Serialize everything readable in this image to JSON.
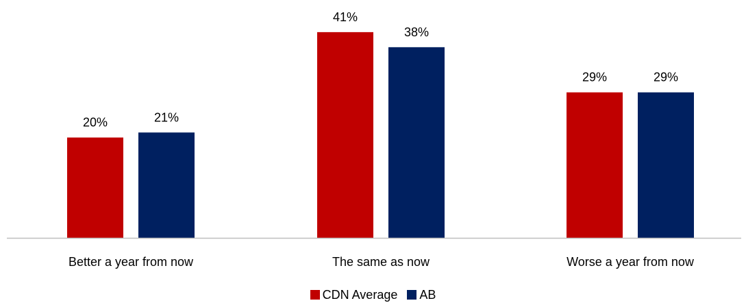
{
  "chart_data": {
    "type": "bar",
    "categories": [
      "Better a year from now",
      "The same as now",
      "Worse a year from now"
    ],
    "series": [
      {
        "name": "CDN Average",
        "values": [
          20,
          41,
          29
        ],
        "labels": [
          "20%",
          "41%",
          "29%"
        ],
        "color": "#C00000"
      },
      {
        "name": "AB",
        "values": [
          21,
          38,
          29
        ],
        "labels": [
          "21%",
          "38%",
          "29%"
        ],
        "color": "#002060"
      }
    ],
    "title": "",
    "xlabel": "",
    "ylabel": "",
    "ylim": [
      0,
      45
    ],
    "grid": false,
    "legend_position": "bottom",
    "axis_color": "#BFBFBF"
  }
}
